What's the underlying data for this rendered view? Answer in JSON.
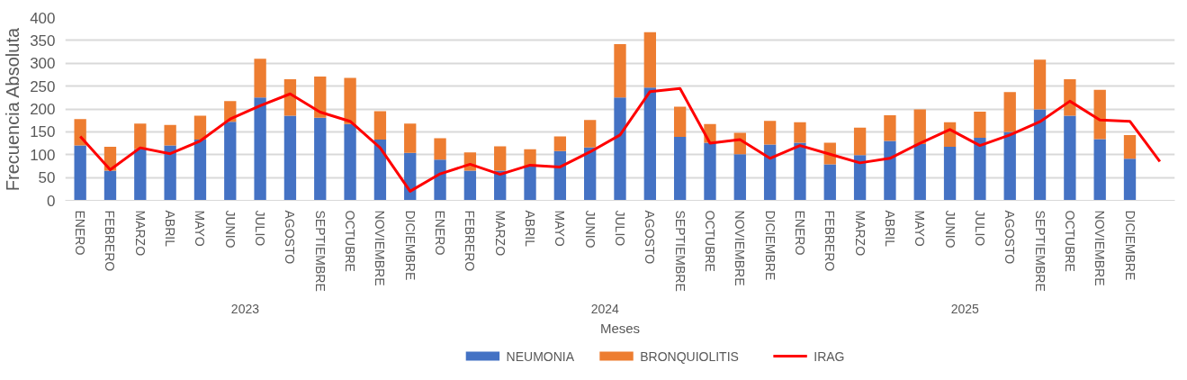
{
  "chart_data": {
    "type": "bar",
    "stacked": true,
    "xlabel": "Meses",
    "ylabel": "Frecuencia Absoluta",
    "categories": [
      "ENERO",
      "FEBRERO",
      "MARZO",
      "ABRIL",
      "MAYO",
      "JUNIO",
      "JULIO",
      "AGOSTO",
      "SEPTIEMBRE",
      "OCTUBRE",
      "NOVIEMBRE",
      "DICIEMBRE",
      "ENERO",
      "FEBRERO",
      "MARZO",
      "ABRIL",
      "MAYO",
      "JUNIO",
      "JULIO",
      "AGOSTO",
      "SEPTIEMBRE",
      "OCTUBRE",
      "NOVIEMBRE",
      "DICIEMBRE",
      "ENERO",
      "FEBRERO",
      "MARZO",
      "ABRIL",
      "MAYO",
      "JUNIO",
      "JULIO",
      "AGOSTO",
      "SEPTIEMBRE",
      "OCTUBRE",
      "NOVIEMBRE",
      "DICIEMBRE",
      null
    ],
    "series": [
      {
        "name": "NEUMONIA",
        "color": "#4472c4",
        "values": [
          120,
          65,
          112,
          120,
          133,
          172,
          225,
          185,
          181,
          167,
          133,
          104,
          89,
          65,
          65,
          75,
          108,
          116,
          225,
          247,
          139,
          126,
          101,
          122,
          126,
          79,
          99,
          130,
          123,
          117,
          137,
          150,
          199,
          185,
          134,
          91,
          null
        ]
      },
      {
        "name": "BRONQUIOLITIS",
        "color": "#ed7d31",
        "values": [
          58,
          52,
          56,
          45,
          52,
          45,
          85,
          80,
          90,
          101,
          62,
          64,
          47,
          40,
          53,
          37,
          32,
          60,
          117,
          121,
          66,
          41,
          47,
          52,
          45,
          47,
          60,
          56,
          76,
          54,
          57,
          87,
          109,
          80,
          108,
          52,
          null
        ]
      },
      {
        "name": "IRAG",
        "type": "line",
        "color": "#ff0000",
        "values": [
          140,
          67,
          115,
          102,
          130,
          178,
          207,
          233,
          193,
          173,
          115,
          20,
          58,
          79,
          57,
          77,
          73,
          106,
          143,
          238,
          245,
          125,
          133,
          92,
          120,
          101,
          82,
          92,
          125,
          155,
          120,
          143,
          172,
          217,
          176,
          173,
          85
        ]
      }
    ],
    "annotations": [
      "2023",
      "2024",
      "2025"
    ],
    "ylim": [
      0,
      400
    ],
    "yticks": [
      0,
      50,
      100,
      150,
      200,
      250,
      300,
      350,
      400
    ],
    "grid": "y",
    "legend": "bottom",
    "line_style": "solid",
    "marker": "none"
  }
}
